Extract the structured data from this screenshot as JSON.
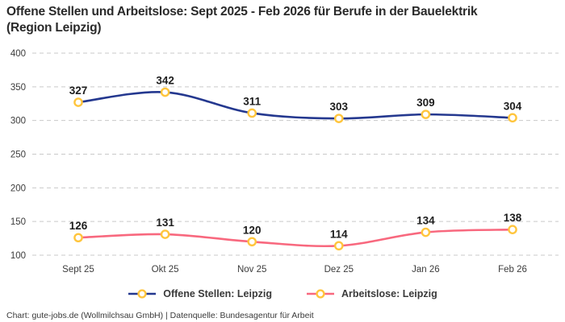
{
  "title": "Offene Stellen und Arbeitslose: Sept 2025 - Feb 2026 für Berufe in der Bauelektrik\n(Region Leipzig)",
  "footer": "Chart: gute-jobs.de (Wollmilchsau GmbH) | Datenquelle: Bundesagentur für Arbeit",
  "colors": {
    "background": "#ffffff",
    "grid": "#c9c9c9",
    "axis_label": "#3c3c3c",
    "data_label": "#1d1d1d",
    "marker_stroke": "#ffc53d",
    "marker_fill": "#ffffff",
    "series_blue": "#24388f",
    "series_pink": "#f8687e"
  },
  "chart_data": {
    "type": "line",
    "categories": [
      "Sept 25",
      "Okt 25",
      "Nov 25",
      "Dez 25",
      "Jan 26",
      "Feb 26"
    ],
    "series": [
      {
        "name": "Offene Stellen: Leipzig",
        "color": "#24388f",
        "values": [
          327,
          342,
          311,
          303,
          309,
          304
        ]
      },
      {
        "name": "Arbeitslose: Leipzig",
        "color": "#f8687e",
        "values": [
          126,
          131,
          120,
          114,
          134,
          138
        ]
      }
    ],
    "title": "Offene Stellen und Arbeitslose: Sept 2025 - Feb 2026 für Berufe in der Bauelektrik (Region Leipzig)",
    "xlabel": "",
    "ylabel": "",
    "ylim": [
      100,
      400
    ],
    "yticks": [
      100,
      150,
      200,
      250,
      300,
      350,
      400
    ],
    "grid": "horizontal-dashed",
    "legend_position": "bottom",
    "marker": {
      "shape": "circle",
      "fill": "#ffffff",
      "stroke": "#ffc53d"
    },
    "data_labels": true,
    "smooth": true
  }
}
